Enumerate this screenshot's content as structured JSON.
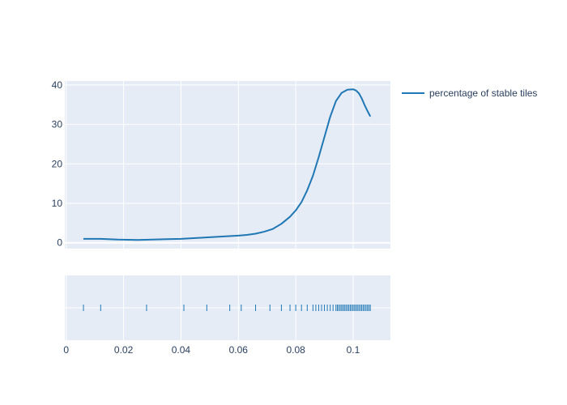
{
  "chart_data": {
    "type": "line",
    "legend": {
      "label": "percentage of stable tiles",
      "placement": "top-right"
    },
    "colors": {
      "series": "#1f77b4",
      "plot_bg": "#e5ecf6",
      "grid": "#ffffff",
      "text": "#2a3f5f"
    },
    "grid": true,
    "x_axis": {
      "range": [
        -0.0005,
        0.113
      ],
      "ticks": [
        0,
        0.02,
        0.04,
        0.06,
        0.08,
        0.1
      ],
      "tick_labels": [
        "0",
        "0.02",
        "0.04",
        "0.06",
        "0.08",
        "0.1"
      ]
    },
    "y_axis": {
      "range": [
        -1.5,
        41
      ],
      "ticks": [
        0,
        10,
        20,
        30,
        40
      ],
      "tick_labels": [
        "0",
        "10",
        "20",
        "30",
        "40"
      ]
    },
    "series": [
      {
        "name": "percentage of stable tiles",
        "x": [
          0.006,
          0.012,
          0.018,
          0.025,
          0.03,
          0.035,
          0.04,
          0.045,
          0.05,
          0.055,
          0.06,
          0.063,
          0.066,
          0.069,
          0.072,
          0.075,
          0.078,
          0.08,
          0.082,
          0.084,
          0.086,
          0.088,
          0.09,
          0.092,
          0.094,
          0.096,
          0.098,
          0.1,
          0.101,
          0.102,
          0.103,
          0.104,
          0.105,
          0.106
        ],
        "y": [
          1.0,
          1.0,
          0.8,
          0.7,
          0.8,
          0.9,
          1.0,
          1.2,
          1.4,
          1.6,
          1.8,
          2.0,
          2.3,
          2.8,
          3.5,
          4.8,
          6.6,
          8.2,
          10.3,
          13.3,
          17.0,
          21.7,
          26.8,
          31.9,
          35.9,
          38.0,
          38.8,
          38.9,
          38.6,
          37.9,
          36.6,
          34.9,
          33.4,
          32.0
        ]
      }
    ],
    "rug": {
      "x": [
        0.006,
        0.012,
        0.028,
        0.041,
        0.049,
        0.057,
        0.061,
        0.066,
        0.071,
        0.075,
        0.078,
        0.08,
        0.082,
        0.084,
        0.086,
        0.087,
        0.088,
        0.089,
        0.09,
        0.091,
        0.092,
        0.093,
        0.094,
        0.0945,
        0.095,
        0.0955,
        0.096,
        0.0965,
        0.097,
        0.0975,
        0.098,
        0.0985,
        0.099,
        0.0995,
        0.1,
        0.1005,
        0.101,
        0.1015,
        0.102,
        0.1025,
        0.103,
        0.1035,
        0.104,
        0.1045,
        0.105,
        0.1055,
        0.106
      ]
    }
  }
}
